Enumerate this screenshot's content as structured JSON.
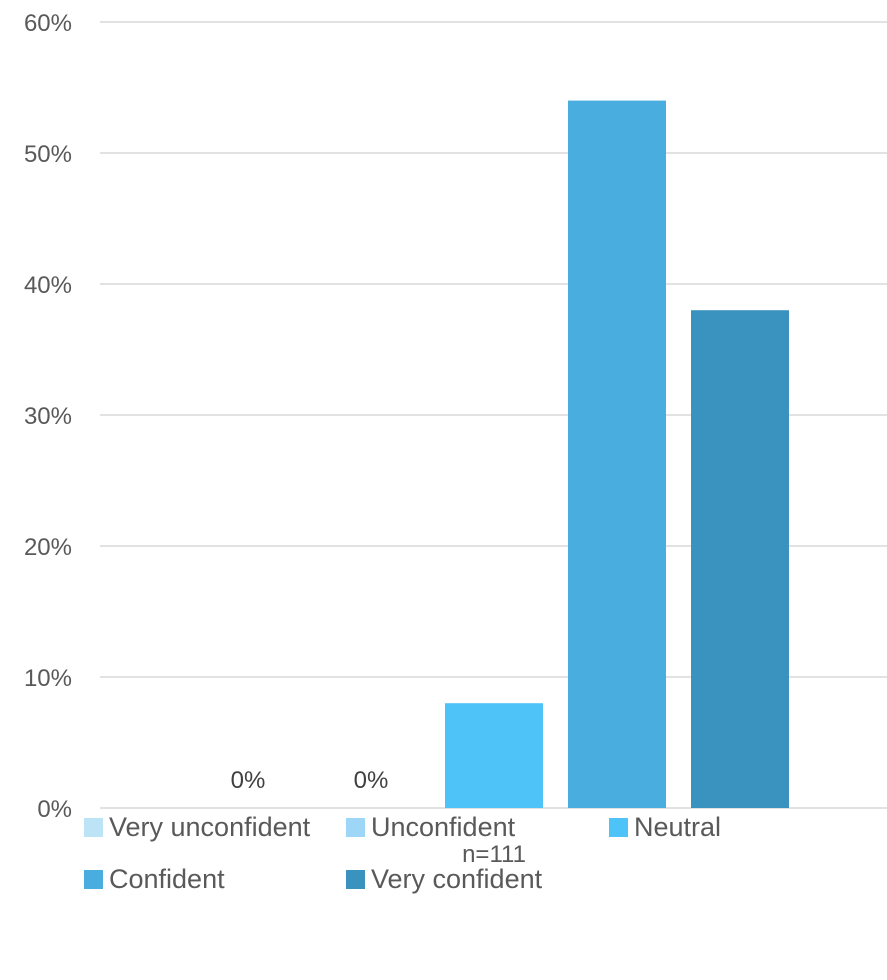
{
  "chart_data": {
    "type": "bar",
    "categories": [
      "n=111"
    ],
    "series": [
      {
        "name": "Very unconfident",
        "values": [
          0
        ],
        "color": "#BDE3F7",
        "label": "0%"
      },
      {
        "name": "Unconfident",
        "values": [
          0
        ],
        "color": "#9DD6F6",
        "label": "0%"
      },
      {
        "name": "Neutral",
        "values": [
          8
        ],
        "color": "#4EC3F7",
        "label": ""
      },
      {
        "name": "Confident",
        "values": [
          54
        ],
        "color": "#4AADDF",
        "label": ""
      },
      {
        "name": "Very confident",
        "values": [
          38
        ],
        "color": "#3A93BE",
        "label": ""
      }
    ],
    "y_ticks": [
      "0%",
      "10%",
      "20%",
      "30%",
      "40%",
      "50%",
      "60%"
    ],
    "y_tick_values": [
      0,
      10,
      20,
      30,
      40,
      50,
      60
    ],
    "ylim": [
      0,
      60
    ],
    "title": "",
    "xlabel": "",
    "ylabel": "",
    "grid": true,
    "legend_position": "bottom"
  },
  "legend": {
    "items": [
      {
        "label": "Very unconfident",
        "color": "#BDE3F7"
      },
      {
        "label": "Unconfident",
        "color": "#9DD6F6"
      },
      {
        "label": "Neutral",
        "color": "#4EC3F7"
      },
      {
        "label": "Confident",
        "color": "#4AADDF"
      },
      {
        "label": "Very confident",
        "color": "#3A93BE"
      }
    ]
  }
}
